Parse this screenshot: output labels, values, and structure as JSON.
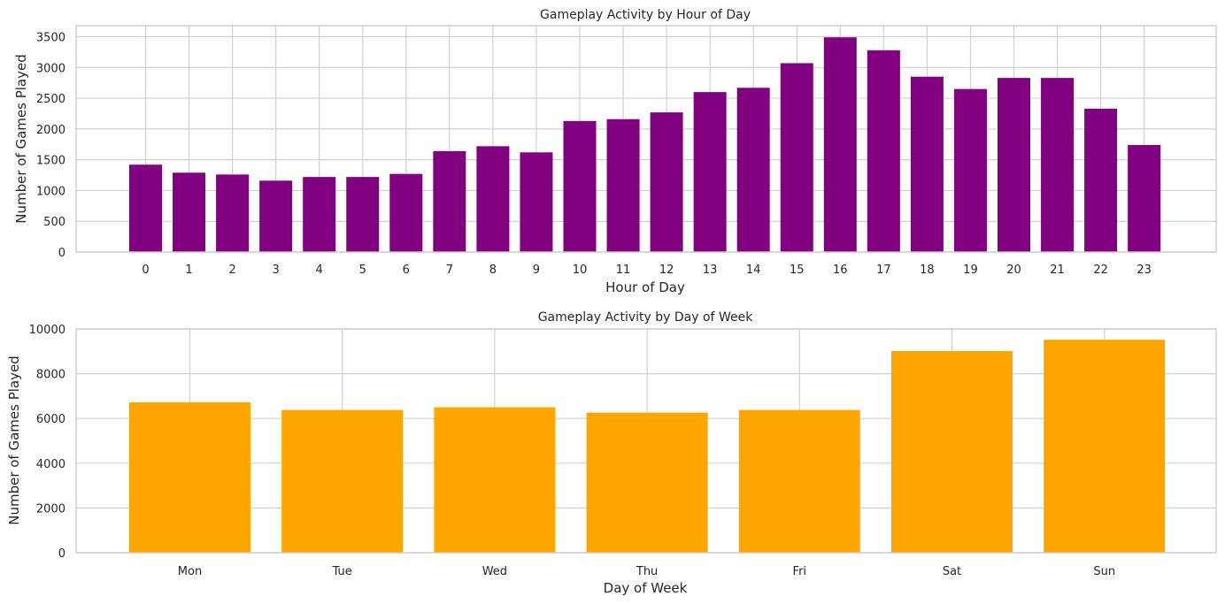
{
  "chart_data": [
    {
      "type": "bar",
      "title": "Gameplay Activity by Hour of Day",
      "xlabel": "Hour of Day",
      "ylabel": "Number of Games Played",
      "categories": [
        "0",
        "1",
        "2",
        "3",
        "4",
        "5",
        "6",
        "7",
        "8",
        "9",
        "10",
        "11",
        "12",
        "13",
        "14",
        "15",
        "16",
        "17",
        "18",
        "19",
        "20",
        "21",
        "22",
        "23"
      ],
      "values": [
        1420,
        1290,
        1260,
        1160,
        1220,
        1220,
        1270,
        1640,
        1720,
        1620,
        2130,
        2160,
        2270,
        2600,
        2670,
        3070,
        3490,
        3280,
        2850,
        2650,
        2830,
        2830,
        2330,
        1740
      ],
      "ylim": [
        0,
        3680
      ],
      "yticks": [
        0,
        500,
        1000,
        1500,
        2000,
        2500,
        3000,
        3500
      ],
      "color": "#800080",
      "grid": true
    },
    {
      "type": "bar",
      "title": "Gameplay Activity by Day of Week",
      "xlabel": "Day of Week",
      "ylabel": "Number of Games Played",
      "categories": [
        "Mon",
        "Tue",
        "Wed",
        "Thu",
        "Fri",
        "Sat",
        "Sun"
      ],
      "values": [
        6720,
        6380,
        6500,
        6260,
        6380,
        9010,
        9520
      ],
      "ylim": [
        0,
        10000
      ],
      "yticks": [
        0,
        2000,
        4000,
        6000,
        8000,
        10000
      ],
      "color": "#FFA500",
      "grid": true
    }
  ]
}
